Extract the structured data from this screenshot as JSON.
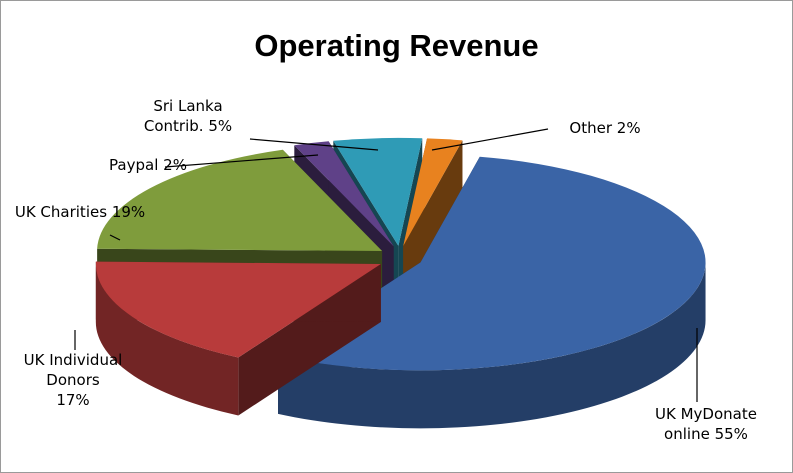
{
  "chart_data": {
    "type": "pie",
    "title": "Operating Revenue",
    "categories": [
      "UK MyDonate online",
      "UK Individual Donors",
      "UK Charities",
      "Paypal",
      "Sri Lanka Contrib.",
      "Other"
    ],
    "values": [
      55,
      17,
      19,
      2,
      5,
      2
    ],
    "value_labels": [
      "55%",
      "17%",
      "19%",
      "2%",
      "5%",
      "2%"
    ],
    "colors": [
      "#3a64a6",
      "#b83b3b",
      "#7f9c3c",
      "#5f4188",
      "#2f9bb6",
      "#e8821f"
    ]
  }
}
